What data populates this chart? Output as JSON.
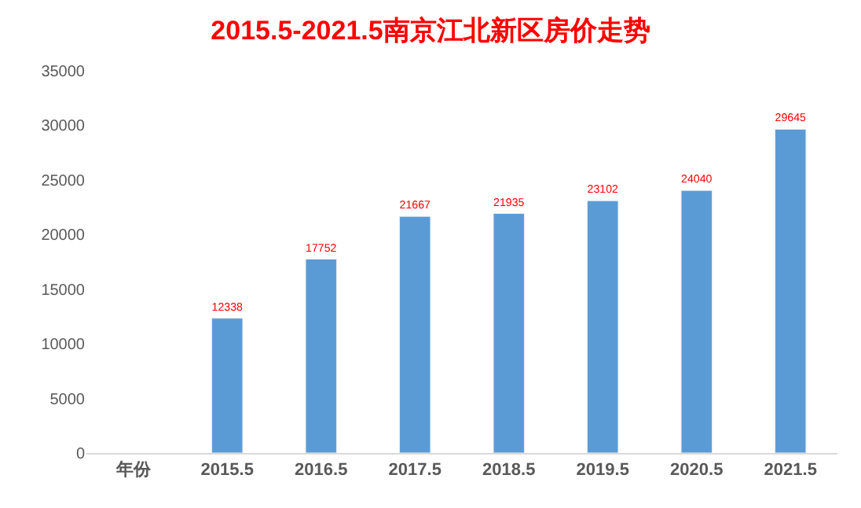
{
  "chart_data": {
    "type": "bar",
    "title": "2015.5-2021.5南京江北新区房价走势",
    "categories": [
      "年份",
      "2015.5",
      "2016.5",
      "2017.5",
      "2018.5",
      "2019.5",
      "2020.5",
      "2021.5"
    ],
    "values": [
      null,
      12338,
      17752,
      21667,
      21935,
      23102,
      24040,
      29645
    ],
    "color": "#5b9bd5",
    "data_labels": true,
    "ylim": [
      0,
      35000
    ],
    "yticks": [
      0,
      5000,
      10000,
      15000,
      20000,
      25000,
      30000,
      35000
    ]
  }
}
